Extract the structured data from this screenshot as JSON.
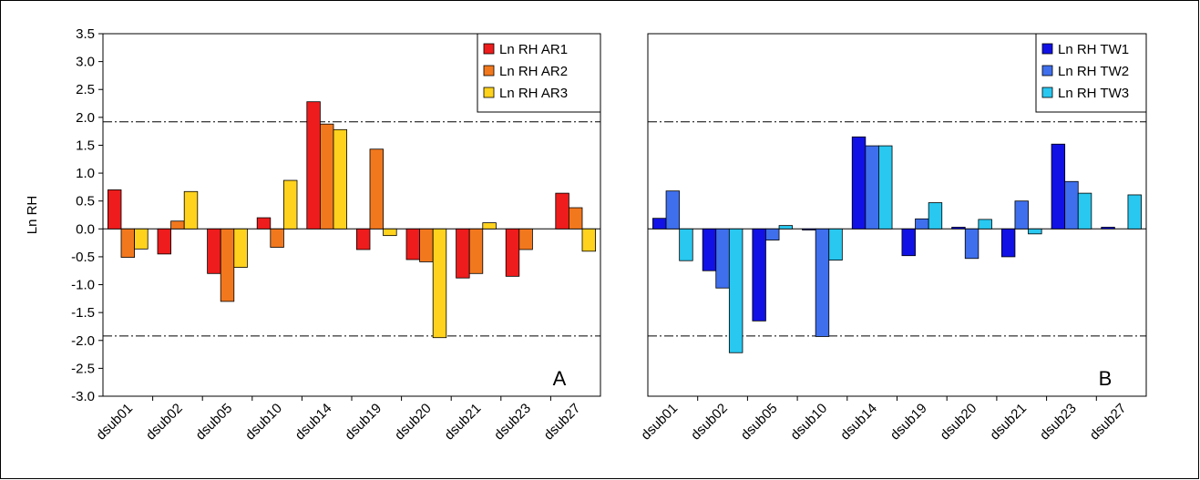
{
  "chart_data": [
    {
      "type": "bar",
      "panel_label": "A",
      "ylabel": "Ln RH",
      "ylim": [
        -3.0,
        3.5
      ],
      "ytick_labels": [
        "3.5",
        "3.0",
        "2.5",
        "2.0",
        "1.5",
        "1.0",
        "0.5",
        "0.0",
        "-0.5",
        "-1.0",
        "-1.5",
        "-2.0",
        "-2.5",
        "-3.0"
      ],
      "ytick_values": [
        3.5,
        3.0,
        2.5,
        2.0,
        1.5,
        1.0,
        0.5,
        0.0,
        -0.5,
        -1.0,
        -1.5,
        -2.0,
        -2.5,
        -3.0
      ],
      "threshold_lines": [
        1.92,
        -1.92
      ],
      "legend_position": "top-right",
      "categories": [
        "dsub01",
        "dsub02",
        "dsub05",
        "dsub10",
        "dsub14",
        "dsub19",
        "dsub20",
        "dsub21",
        "dsub23",
        "dsub27"
      ],
      "series": [
        {
          "name": "Ln RH AR1",
          "color": "#ee1c1c",
          "values": [
            0.7,
            -0.45,
            -0.8,
            0.2,
            2.28,
            -0.37,
            -0.55,
            -0.88,
            -0.85,
            0.64
          ]
        },
        {
          "name": "Ln RH AR2",
          "color": "#f2781e",
          "values": [
            -0.51,
            0.14,
            -1.3,
            -0.33,
            1.88,
            1.43,
            -0.59,
            -0.8,
            -0.37,
            0.38
          ]
        },
        {
          "name": "Ln RH AR3",
          "color": "#ffd21e",
          "values": [
            -0.36,
            0.67,
            -0.69,
            0.87,
            1.78,
            -0.12,
            -1.95,
            0.11,
            null,
            -0.4
          ]
        }
      ]
    },
    {
      "type": "bar",
      "panel_label": "B",
      "ylim": [
        -3.0,
        3.5
      ],
      "threshold_lines": [
        1.92,
        -1.92
      ],
      "legend_position": "top-right",
      "categories": [
        "dsub01",
        "dsub02",
        "dsub05",
        "dsub10",
        "dsub14",
        "dsub19",
        "dsub20",
        "dsub21",
        "dsub23",
        "dsub27"
      ],
      "series": [
        {
          "name": "Ln RH TW1",
          "color": "#1111e6",
          "values": [
            0.19,
            -0.75,
            -1.65,
            -0.02,
            1.65,
            -0.48,
            0.03,
            -0.5,
            1.52,
            0.03
          ]
        },
        {
          "name": "Ln RH TW2",
          "color": "#3f6fec",
          "values": [
            0.68,
            -1.06,
            -0.2,
            -1.93,
            1.49,
            0.18,
            -0.53,
            0.5,
            0.85,
            null
          ]
        },
        {
          "name": "Ln RH TW3",
          "color": "#28c8f0",
          "values": [
            -0.57,
            -2.22,
            0.06,
            -0.56,
            1.49,
            0.47,
            0.17,
            -0.09,
            0.64,
            0.61
          ]
        }
      ]
    }
  ]
}
